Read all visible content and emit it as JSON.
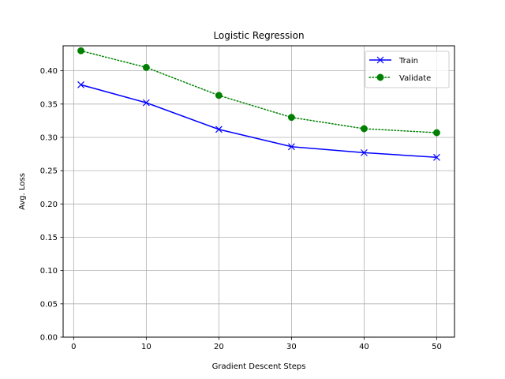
{
  "chart_data": {
    "type": "line",
    "title": "Logistic Regression",
    "xlabel": "Gradient Descent Steps",
    "ylabel": "Avg. Loss",
    "xlim": [
      -1.45,
      52.45
    ],
    "ylim": [
      0,
      0.4375
    ],
    "xticks": [
      0,
      10,
      20,
      30,
      40,
      50
    ],
    "yticks": [
      0.0,
      0.05,
      0.1,
      0.15,
      0.2,
      0.25,
      0.3,
      0.35,
      0.4
    ],
    "ytick_labels": [
      "0.00",
      "0.05",
      "0.10",
      "0.15",
      "0.20",
      "0.25",
      "0.30",
      "0.35",
      "0.40"
    ],
    "grid": true,
    "legend_position": "top-right",
    "x": [
      1,
      10,
      20,
      30,
      40,
      50
    ],
    "series": [
      {
        "name": "Train",
        "values": [
          0.379,
          0.352,
          0.312,
          0.286,
          0.277,
          0.27
        ],
        "color": "#0000ff",
        "marker": "x",
        "linestyle": "solid"
      },
      {
        "name": "Validate",
        "values": [
          0.43,
          0.405,
          0.363,
          0.33,
          0.313,
          0.307
        ],
        "color": "#008000",
        "marker": "circle",
        "linestyle": "dotted"
      }
    ]
  }
}
